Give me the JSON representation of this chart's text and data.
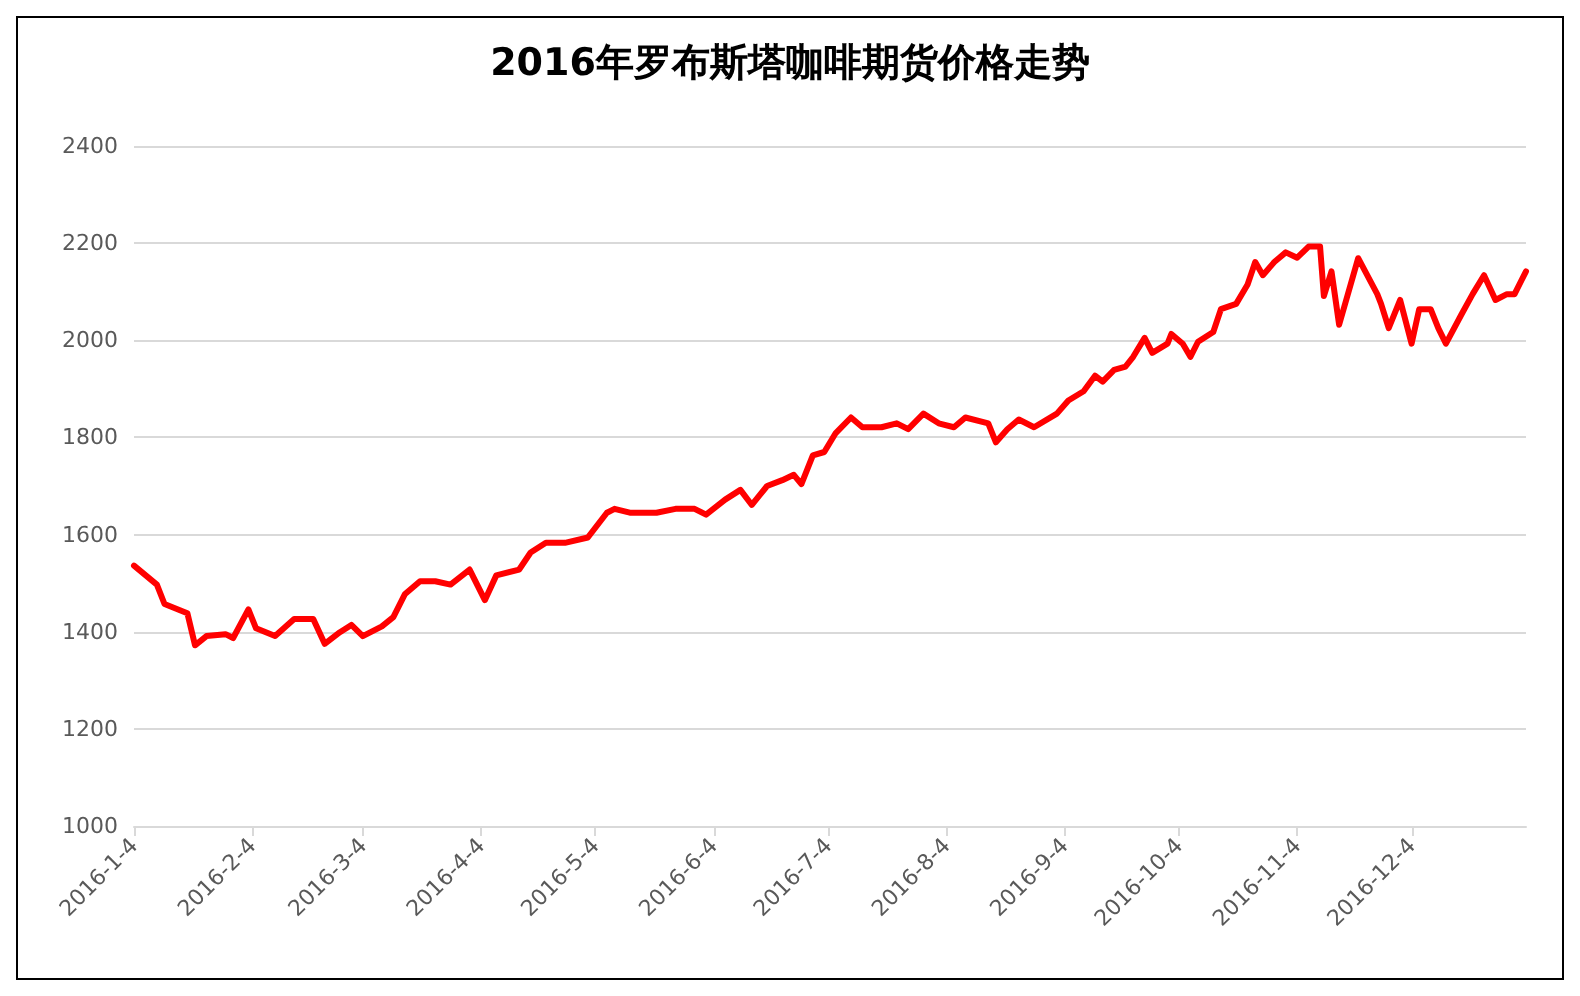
{
  "chart_data": {
    "type": "line",
    "title": "2016年罗布斯塔咖啡期货价格走势",
    "x": [
      "2016-01-04",
      "2016-01-10",
      "2016-01-12",
      "2016-01-18",
      "2016-01-20",
      "2016-01-23",
      "2016-01-28",
      "2016-01-30",
      "2016-02-03",
      "2016-02-05",
      "2016-02-10",
      "2016-02-15",
      "2016-02-20",
      "2016-02-23",
      "2016-02-27",
      "2016-03-01",
      "2016-03-04",
      "2016-03-09",
      "2016-03-12",
      "2016-03-15",
      "2016-03-19",
      "2016-03-23",
      "2016-03-27",
      "2016-04-01",
      "2016-04-05",
      "2016-04-08",
      "2016-04-14",
      "2016-04-17",
      "2016-04-21",
      "2016-04-26",
      "2016-05-02",
      "2016-05-07",
      "2016-05-09",
      "2016-05-13",
      "2016-05-20",
      "2016-05-25",
      "2016-05-30",
      "2016-06-02",
      "2016-06-07",
      "2016-06-11",
      "2016-06-14",
      "2016-06-18",
      "2016-06-22",
      "2016-06-25",
      "2016-06-27",
      "2016-06-30",
      "2016-07-03",
      "2016-07-06",
      "2016-07-10",
      "2016-07-13",
      "2016-07-18",
      "2016-07-22",
      "2016-07-25",
      "2016-07-29",
      "2016-08-02",
      "2016-08-06",
      "2016-08-09",
      "2016-08-15",
      "2016-08-17",
      "2016-08-20",
      "2016-08-23",
      "2016-08-27",
      "2016-09-02",
      "2016-09-05",
      "2016-09-09",
      "2016-09-12",
      "2016-09-14",
      "2016-09-17",
      "2016-09-20",
      "2016-09-22",
      "2016-09-25",
      "2016-09-27",
      "2016-10-01",
      "2016-10-02",
      "2016-10-05",
      "2016-10-07",
      "2016-10-09",
      "2016-10-13",
      "2016-10-15",
      "2016-10-19",
      "2016-10-22",
      "2016-10-24",
      "2016-10-26",
      "2016-10-29",
      "2016-11-01",
      "2016-11-04",
      "2016-11-07",
      "2016-11-10",
      "2016-11-11",
      "2016-11-13",
      "2016-11-15",
      "2016-11-20",
      "2016-11-25",
      "2016-11-26",
      "2016-11-28",
      "2016-12-01",
      "2016-12-04",
      "2016-12-06",
      "2016-12-09",
      "2016-12-11",
      "2016-12-13",
      "2016-12-17",
      "2016-12-20",
      "2016-12-23",
      "2016-12-26",
      "2016-12-29",
      "2016-12-31",
      "2017-01-03"
    ],
    "series": [
      {
        "color": "#ff0000",
        "values": [
          1536,
          1497,
          1457,
          1438,
          1372,
          1391,
          1395,
          1387,
          1446,
          1407,
          1391,
          1426,
          1426,
          1375,
          1399,
          1414,
          1391,
          1411,
          1430,
          1477,
          1504,
          1504,
          1497,
          1528,
          1465,
          1516,
          1528,
          1563,
          1583,
          1583,
          1594,
          1645,
          1653,
          1645,
          1645,
          1653,
          1653,
          1641,
          1672,
          1692,
          1661,
          1700,
          1712,
          1723,
          1704,
          1763,
          1770,
          1809,
          1841,
          1821,
          1821,
          1829,
          1817,
          1849,
          1829,
          1821,
          1841,
          1829,
          1790,
          1817,
          1837,
          1821,
          1849,
          1876,
          1895,
          1927,
          1915,
          1939,
          1946,
          1966,
          2005,
          1974,
          1993,
          2013,
          1993,
          1966,
          1997,
          2017,
          2064,
          2075,
          2115,
          2161,
          2134,
          2161,
          2181,
          2170,
          2193,
          2193,
          2091,
          2142,
          2032,
          2169,
          2095,
          2075,
          2025,
          2083,
          1993,
          2064,
          2064,
          2025,
          1993,
          2052,
          2095,
          2134,
          2083,
          2095,
          2095,
          2142
        ]
      }
    ],
    "xlim": [
      "2016-01-04",
      "2017-01-03"
    ],
    "xticks": [
      {
        "value": "2016-01-04",
        "label": "2016-1-4"
      },
      {
        "value": "2016-02-04",
        "label": "2016-2-4"
      },
      {
        "value": "2016-03-04",
        "label": "2016-3-4"
      },
      {
        "value": "2016-04-04",
        "label": "2016-4-4"
      },
      {
        "value": "2016-05-04",
        "label": "2016-5-4"
      },
      {
        "value": "2016-06-04",
        "label": "2016-6-4"
      },
      {
        "value": "2016-07-04",
        "label": "2016-7-4"
      },
      {
        "value": "2016-08-04",
        "label": "2016-8-4"
      },
      {
        "value": "2016-09-04",
        "label": "2016-9-4"
      },
      {
        "value": "2016-10-04",
        "label": "2016-10-4"
      },
      {
        "value": "2016-11-04",
        "label": "2016-11-4"
      },
      {
        "value": "2016-12-04",
        "label": "2016-12-4"
      }
    ],
    "ylim": [
      1000,
      2400
    ],
    "yticks": [
      1000,
      1200,
      1400,
      1600,
      1800,
      2000,
      2200,
      2400
    ],
    "grid": "y",
    "marker": "none",
    "line_style": "solid"
  }
}
